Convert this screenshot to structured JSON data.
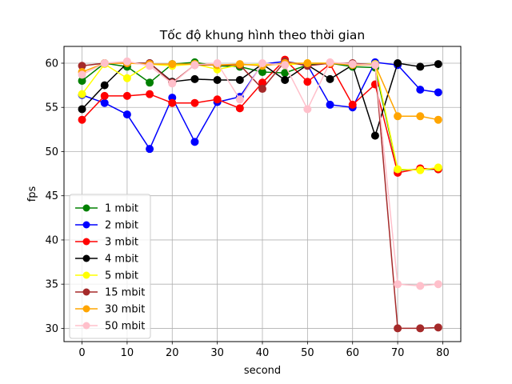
{
  "chart_data": {
    "type": "line",
    "title": "Tốc độ khung hình theo thời gian",
    "xlabel": "second",
    "ylabel": "fps",
    "xlim": [
      -4,
      84
    ],
    "ylim": [
      28.5,
      61.9
    ],
    "xticks": [
      0,
      10,
      20,
      30,
      40,
      50,
      60,
      70,
      80
    ],
    "yticks": [
      30,
      35,
      40,
      45,
      50,
      55,
      60
    ],
    "grid": true,
    "legend_position": "lower-left",
    "x": [
      0,
      5,
      10,
      15,
      20,
      25,
      30,
      35,
      40,
      45,
      50,
      55,
      60,
      65,
      70,
      75,
      79
    ],
    "series": [
      {
        "name": "1 mbit",
        "color": "#008000",
        "values": [
          58.0,
          60.0,
          59.6,
          57.8,
          59.9,
          60.1,
          59.7,
          59.6,
          59.0,
          58.9,
          59.8,
          60.0,
          59.6,
          59.5,
          47.9,
          48.0,
          48.0
        ]
      },
      {
        "name": "2 mbit",
        "color": "#0000ff",
        "values": [
          56.4,
          55.5,
          54.2,
          50.3,
          56.1,
          51.1,
          55.6,
          56.2,
          59.9,
          60.2,
          59.8,
          55.3,
          55.0,
          60.1,
          59.8,
          57.0,
          56.7
        ]
      },
      {
        "name": "3 mbit",
        "color": "#ff0000",
        "values": [
          53.6,
          56.3,
          56.3,
          56.5,
          55.5,
          55.5,
          55.9,
          54.9,
          57.8,
          60.4,
          57.9,
          59.9,
          55.3,
          57.6,
          47.6,
          48.1,
          48.0
        ]
      },
      {
        "name": "4 mbit",
        "color": "#000000",
        "values": [
          54.8,
          57.5,
          60.0,
          60.0,
          57.9,
          58.2,
          58.1,
          58.1,
          59.9,
          58.1,
          59.8,
          58.2,
          59.8,
          51.8,
          60.0,
          59.6,
          59.9
        ]
      },
      {
        "name": "5 mbit",
        "color": "#ffff00",
        "values": [
          56.5,
          59.9,
          58.3,
          59.9,
          59.7,
          59.9,
          59.3,
          59.8,
          59.9,
          59.8,
          60.0,
          60.0,
          59.9,
          59.9,
          48.0,
          47.9,
          48.2
        ]
      },
      {
        "name": "15 mbit",
        "color": "#a52a2a",
        "values": [
          59.7,
          60.0,
          60.0,
          60.0,
          57.8,
          59.8,
          59.8,
          59.8,
          57.1,
          60.2,
          59.7,
          60.0,
          60.0,
          59.8,
          30.0,
          30.0,
          30.1
        ]
      },
      {
        "name": "30 mbit",
        "color": "#ffa500",
        "values": [
          59.0,
          60.0,
          60.0,
          59.9,
          59.9,
          59.9,
          59.8,
          59.9,
          59.7,
          60.0,
          60.0,
          60.0,
          59.8,
          59.8,
          54.0,
          54.0,
          53.6
        ]
      },
      {
        "name": "50 mbit",
        "color": "#ffc0cb",
        "values": [
          58.7,
          60.0,
          60.2,
          59.7,
          57.7,
          59.8,
          60.0,
          55.9,
          60.0,
          59.8,
          54.8,
          60.1,
          59.9,
          59.8,
          35.0,
          34.8,
          35.0
        ]
      }
    ]
  }
}
